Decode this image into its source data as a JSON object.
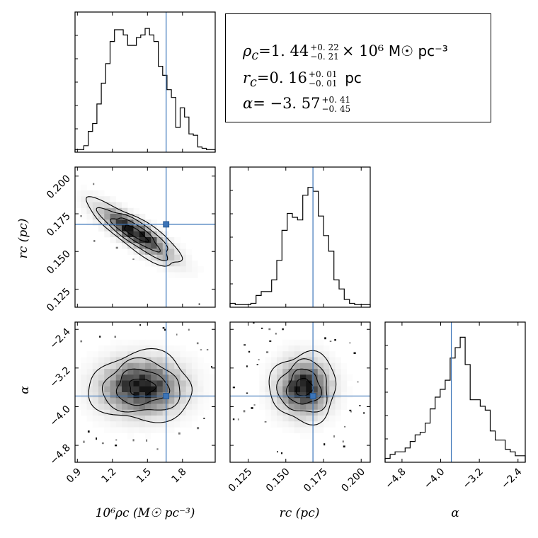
{
  "summary": {
    "line1": {
      "lhs": "ρ",
      "sub": "c",
      "eq": "=",
      "value": "1. 44",
      "err_up": "+0. 22",
      "err_down": "−0. 21",
      "times": "× 10⁶",
      "unit": "M☉  pc⁻³"
    },
    "line2": {
      "lhs": "r",
      "sub": "c",
      "eq": "=",
      "value": "0. 16",
      "err_up": "+0. 01",
      "err_down": "−0. 01",
      "unit": "pc"
    },
    "line3": {
      "lhs": "α",
      "eq": "= −",
      "value": "3. 57",
      "err_up": "+0. 41",
      "err_down": "−0. 45"
    }
  },
  "chart_data": {
    "type": "corner",
    "parameters": [
      "rho_c",
      "r_c",
      "alpha"
    ],
    "axis_labels": {
      "rho_c": "10⁶ρc (M☉ pc⁻³)",
      "r_c": "rc (pc)",
      "alpha": "α"
    },
    "ranges": {
      "rho_c": [
        0.88,
        2.08
      ],
      "r_c": [
        0.113,
        0.206
      ],
      "alpha": [
        -5.15,
        -2.25
      ]
    },
    "ticks": {
      "rho_c": [
        "0.9",
        "1.2",
        "1.5",
        "1.8"
      ],
      "r_c": [
        "0.125",
        "0.150",
        "0.175",
        "0.200"
      ],
      "alpha": [
        "−4.8",
        "−4.0",
        "−3.2",
        "−2.4"
      ]
    },
    "tick_values": {
      "rho_c": [
        0.9,
        1.2,
        1.5,
        1.8
      ],
      "r_c": [
        0.125,
        0.15,
        0.175,
        0.2
      ],
      "alpha": [
        -4.8,
        -4.0,
        -3.2,
        -2.4
      ]
    },
    "truth": {
      "rho_c": 1.66,
      "r_c": 0.168,
      "alpha": -3.78
    },
    "truth_color": "#3b74b8",
    "medians": {
      "rho_c": 1.44,
      "r_c": 0.16,
      "alpha": -3.57
    },
    "histograms": {
      "rho_c": [
        0.02,
        0.02,
        0.05,
        0.16,
        0.22,
        0.37,
        0.53,
        0.68,
        0.85,
        0.94,
        0.94,
        0.9,
        0.82,
        0.82,
        0.88,
        0.9,
        0.95,
        0.9,
        0.85,
        0.66,
        0.59,
        0.48,
        0.42,
        0.19,
        0.34,
        0.27,
        0.14,
        0.13,
        0.04,
        0.03,
        0.02,
        0.02
      ],
      "r_c": [
        0.03,
        0.02,
        0.02,
        0.02,
        0.03,
        0.09,
        0.12,
        0.12,
        0.21,
        0.36,
        0.59,
        0.72,
        0.69,
        0.67,
        0.86,
        0.92,
        0.89,
        0.7,
        0.55,
        0.43,
        0.21,
        0.14,
        0.06,
        0.03,
        0.02,
        0.02,
        0.02
      ],
      "alpha": [
        0.03,
        0.06,
        0.08,
        0.08,
        0.11,
        0.16,
        0.21,
        0.23,
        0.3,
        0.41,
        0.5,
        0.56,
        0.63,
        0.8,
        0.88,
        0.96,
        0.75,
        0.48,
        0.48,
        0.43,
        0.4,
        0.24,
        0.17,
        0.17,
        0.1,
        0.08,
        0.05,
        0.05
      ]
    },
    "contours_2d": [
      {
        "x": "rho_c",
        "y": "r_c",
        "center": [
          1.4,
          0.162
        ],
        "sigma": [
          0.2,
          0.011
        ],
        "correlation": -0.85,
        "levels": [
          0.5,
          1.0,
          1.5,
          2.0
        ]
      },
      {
        "x": "rho_c",
        "y": "alpha",
        "center": [
          1.45,
          -3.6
        ],
        "sigma": [
          0.22,
          0.36
        ],
        "correlation": 0.0,
        "levels": [
          0.5,
          1.0,
          1.5,
          2.0
        ]
      },
      {
        "x": "r_c",
        "y": "alpha",
        "center": [
          0.162,
          -3.6
        ],
        "sigma": [
          0.011,
          0.36
        ],
        "correlation": 0.0,
        "levels": [
          0.5,
          1.0,
          1.5,
          2.0
        ]
      }
    ]
  }
}
